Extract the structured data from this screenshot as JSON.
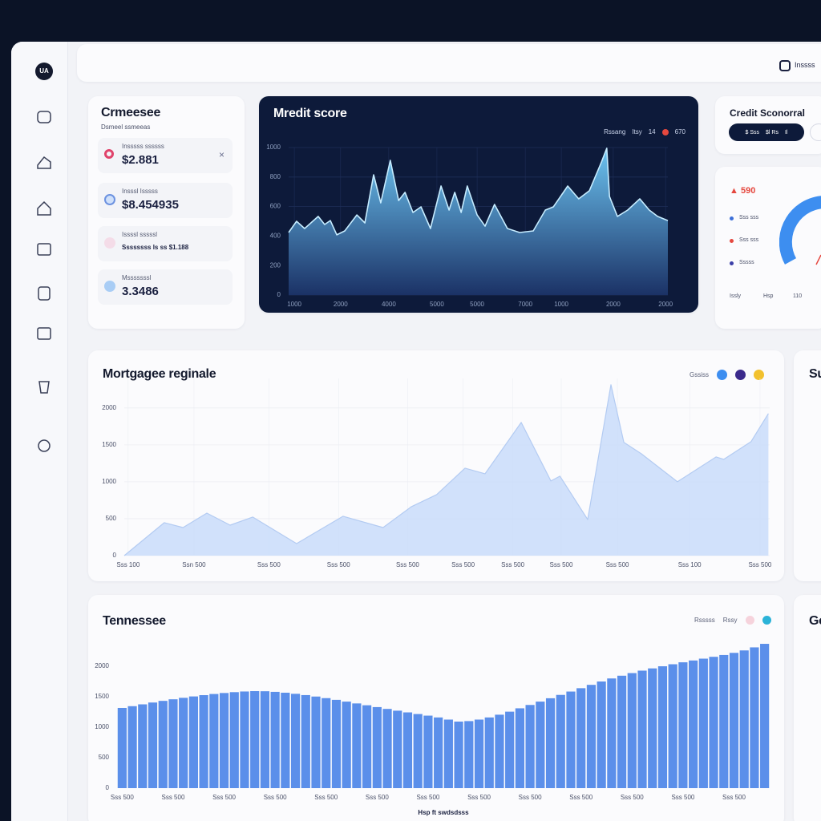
{
  "header": {
    "brand": "UA",
    "user": "Inssss"
  },
  "summary": {
    "title": "Crmeesee",
    "subtitle": "Dsmeel ssmeeas",
    "items": [
      {
        "label": "Insssss ssssss",
        "value": "$2.881"
      },
      {
        "label": "Insssl Isssss",
        "value": "$8.454935"
      },
      {
        "label": "Issssl sssssl",
        "value": "Ssssssss ls ss $1.188"
      },
      {
        "label": "Msssssssl",
        "value": "3.3486"
      }
    ]
  },
  "credit_card": {
    "title": "Credit Sconorral",
    "pill": [
      "$ Sss",
      "$l Rs",
      "Il"
    ]
  },
  "gauge": {
    "value": "590",
    "legend": [
      "Sss sss",
      "Sss sss",
      "Sssss"
    ],
    "axis": [
      "Issly",
      "Hsp",
      "110"
    ]
  },
  "side_cards": [
    "Su",
    "Ge"
  ],
  "chart_data": [
    {
      "type": "area",
      "title": "Mredit score",
      "legend": [
        "Rssang",
        "Itsy",
        "14",
        "670"
      ],
      "x": [
        0,
        2.1,
        4.2,
        7.8,
        9.5,
        11,
        12.7,
        14.8,
        18,
        20.1,
        22.4,
        24.3,
        26.8,
        29,
        30.7,
        32.8,
        34.9,
        37.4,
        40.2,
        42.3,
        43.8,
        45.5,
        47.1,
        49.7,
        51.8,
        54.3,
        57.7,
        60.9,
        64.5,
        67.7,
        69.8,
        73.6,
        76.5,
        79.3,
        82.5,
        83.9,
        84.6,
        86.7,
        89.4,
        92.6,
        95.1,
        97.3,
        100
      ],
      "values": [
        424,
        500,
        451,
        533,
        478,
        505,
        408,
        435,
        543,
        489,
        815,
        625,
        913,
        641,
        696,
        560,
        598,
        451,
        739,
        576,
        696,
        560,
        739,
        543,
        467,
        614,
        451,
        424,
        435,
        576,
        598,
        739,
        652,
        707,
        902,
        995,
        668,
        533,
        576,
        652,
        576,
        533,
        505
      ],
      "color": "#6cc3f0",
      "xlim": [
        0,
        100
      ],
      "ylim": [
        0,
        1000
      ],
      "xticks": [
        {
          "value": 1.5,
          "label": "1000"
        },
        {
          "value": 13.7,
          "label": "2000"
        },
        {
          "value": 26.4,
          "label": "4000"
        },
        {
          "value": 39.1,
          "label": "5000"
        },
        {
          "value": 49.7,
          "label": "5000"
        },
        {
          "value": 62.4,
          "label": "7000"
        },
        {
          "value": 71.9,
          "label": "1000"
        },
        {
          "value": 85.6,
          "label": "2000"
        },
        {
          "value": 99.4,
          "label": "2000"
        }
      ],
      "yticks": [
        0,
        200,
        400,
        600,
        800,
        1000
      ],
      "grid": true
    },
    {
      "type": "area",
      "title": "Mortgagee reginale",
      "legend": [
        "Gssiss"
      ],
      "x": [
        0,
        6.2,
        9.1,
        12.8,
        16.4,
        19.9,
        26.7,
        33.9,
        40.1,
        44.5,
        48.4,
        52.8,
        55.9,
        61.5,
        66.1,
        67.5,
        71.8,
        75.4,
        77.4,
        80.1,
        85.7,
        91.7,
        92.9,
        97.1,
        99.8
      ],
      "values": [
        0,
        446,
        380,
        576,
        413,
        522,
        163,
        533,
        380,
        663,
        826,
        1185,
        1109,
        1804,
        1011,
        1076,
        489,
        2315,
        1533,
        1380,
        1000,
        1337,
        1304,
        1543,
        1924
      ],
      "color": "#c9dcfa",
      "xlim": [
        0,
        100
      ],
      "ylim": [
        0,
        2400
      ],
      "xticks": [
        {
          "value": 0.6,
          "label": "Sss 100"
        },
        {
          "value": 10.8,
          "label": "Ssn 500"
        },
        {
          "value": 22.4,
          "label": "Sss 500"
        },
        {
          "value": 33.2,
          "label": "Sss 500"
        },
        {
          "value": 43.9,
          "label": "Sss 500"
        },
        {
          "value": 52.5,
          "label": "Sss 500"
        },
        {
          "value": 60.2,
          "label": "Sss 500"
        },
        {
          "value": 67.7,
          "label": "Sss 500"
        },
        {
          "value": 76.4,
          "label": "Sss 500"
        },
        {
          "value": 87.6,
          "label": "Sss 100"
        },
        {
          "value": 98.5,
          "label": "Sss 500"
        }
      ],
      "yticks": [
        0,
        500,
        1000,
        1500,
        2000
      ],
      "grid": true
    },
    {
      "type": "bar",
      "title": "Tennessee",
      "x_label": "Hsp ft swdsdsss",
      "legend": [
        "Rsssss",
        "Rssy"
      ],
      "categories": [
        "Sss 500",
        null,
        null,
        null,
        null,
        "Sss 500",
        null,
        null,
        null,
        null,
        "Sss 500",
        null,
        null,
        null,
        null,
        "Sss 500",
        null,
        null,
        null,
        null,
        "Sss 500",
        null,
        null,
        null,
        null,
        "Sss 500",
        null,
        null,
        null,
        null,
        "Sss 500",
        null,
        null,
        null,
        null,
        "Sss 500",
        null,
        null,
        null,
        null,
        "Sss 500",
        null,
        null,
        null,
        null,
        "Sss 500",
        null,
        null,
        null,
        null,
        "Sss 500",
        null,
        null,
        null,
        null,
        "Sss 500",
        null,
        null,
        null,
        null,
        "Sss 500",
        null,
        null,
        null
      ],
      "values": [
        1316,
        1345,
        1375,
        1405,
        1432,
        1458,
        1482,
        1505,
        1526,
        1545,
        1561,
        1575,
        1586,
        1592,
        1590,
        1580,
        1566,
        1548,
        1527,
        1503,
        1477,
        1449,
        1420,
        1390,
        1360,
        1330,
        1300,
        1271,
        1243,
        1216,
        1190,
        1160,
        1125,
        1092,
        1100,
        1125,
        1160,
        1205,
        1255,
        1310,
        1365,
        1420,
        1475,
        1530,
        1585,
        1640,
        1695,
        1750,
        1800,
        1845,
        1888,
        1928,
        1965,
        2000,
        2033,
        2065,
        2095,
        2125,
        2155,
        2185,
        2220,
        2260,
        2310,
        2368
      ],
      "color": "#5b8fea",
      "ylim": [
        0,
        2500
      ],
      "yticks": [
        0,
        500,
        1000,
        1500,
        2000
      ],
      "grid": false
    }
  ]
}
